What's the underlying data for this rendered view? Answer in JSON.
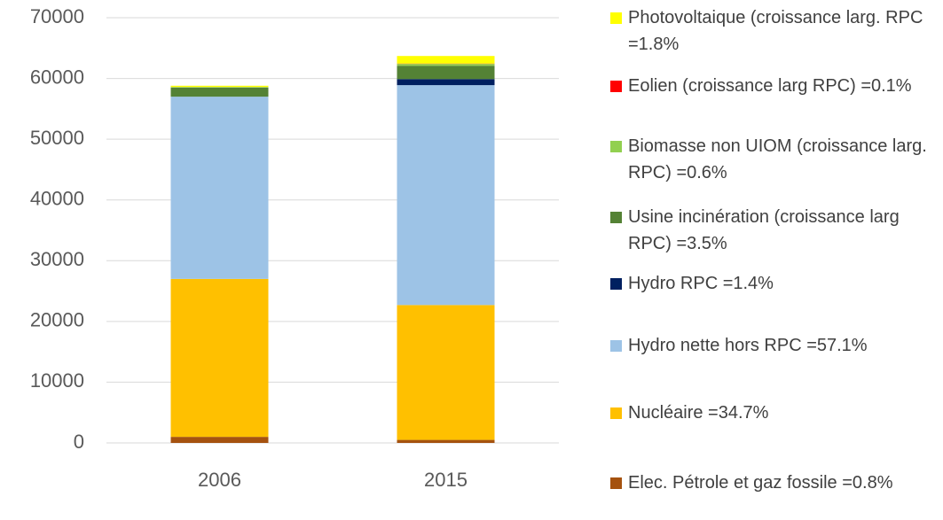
{
  "chart_data": {
    "type": "stacked_bar",
    "categories": [
      "2006",
      "2015"
    ],
    "series": [
      {
        "name": "Elec. Pétrole et gaz fossile =0.8%",
        "color": "#a5520f",
        "values": [
          1000,
          500
        ]
      },
      {
        "name": "Nucléaire =34.7%",
        "color": "#ffc000",
        "values": [
          26000,
          22200
        ]
      },
      {
        "name": "Hydro nette hors RPC =57.1%",
        "color": "#9dc3e6",
        "values": [
          30000,
          36200
        ]
      },
      {
        "name": "Hydro RPC =1.4%",
        "color": "#002060",
        "values": [
          0,
          1000
        ]
      },
      {
        "name": "Usine incinération (croissance larg RPC) =3.5%",
        "color": "#548235",
        "values": [
          1500,
          2200
        ]
      },
      {
        "name": "Biomasse non UIOM (croissance larg. RPC) =0.6%",
        "color": "#92d050",
        "values": [
          100,
          300
        ]
      },
      {
        "name": "Eolien (croissance larg RPC) =0.1%",
        "color": "#ff0000",
        "values": [
          0,
          50
        ]
      },
      {
        "name": "Photovoltaique (croissance larg. RPC =1.8%",
        "color": "#ffff00",
        "values": [
          200,
          1250
        ]
      }
    ],
    "ylim": [
      0,
      70000
    ],
    "yticks": [
      0,
      10000,
      20000,
      30000,
      40000,
      50000,
      60000,
      70000
    ],
    "grid": true,
    "legend": "right"
  }
}
